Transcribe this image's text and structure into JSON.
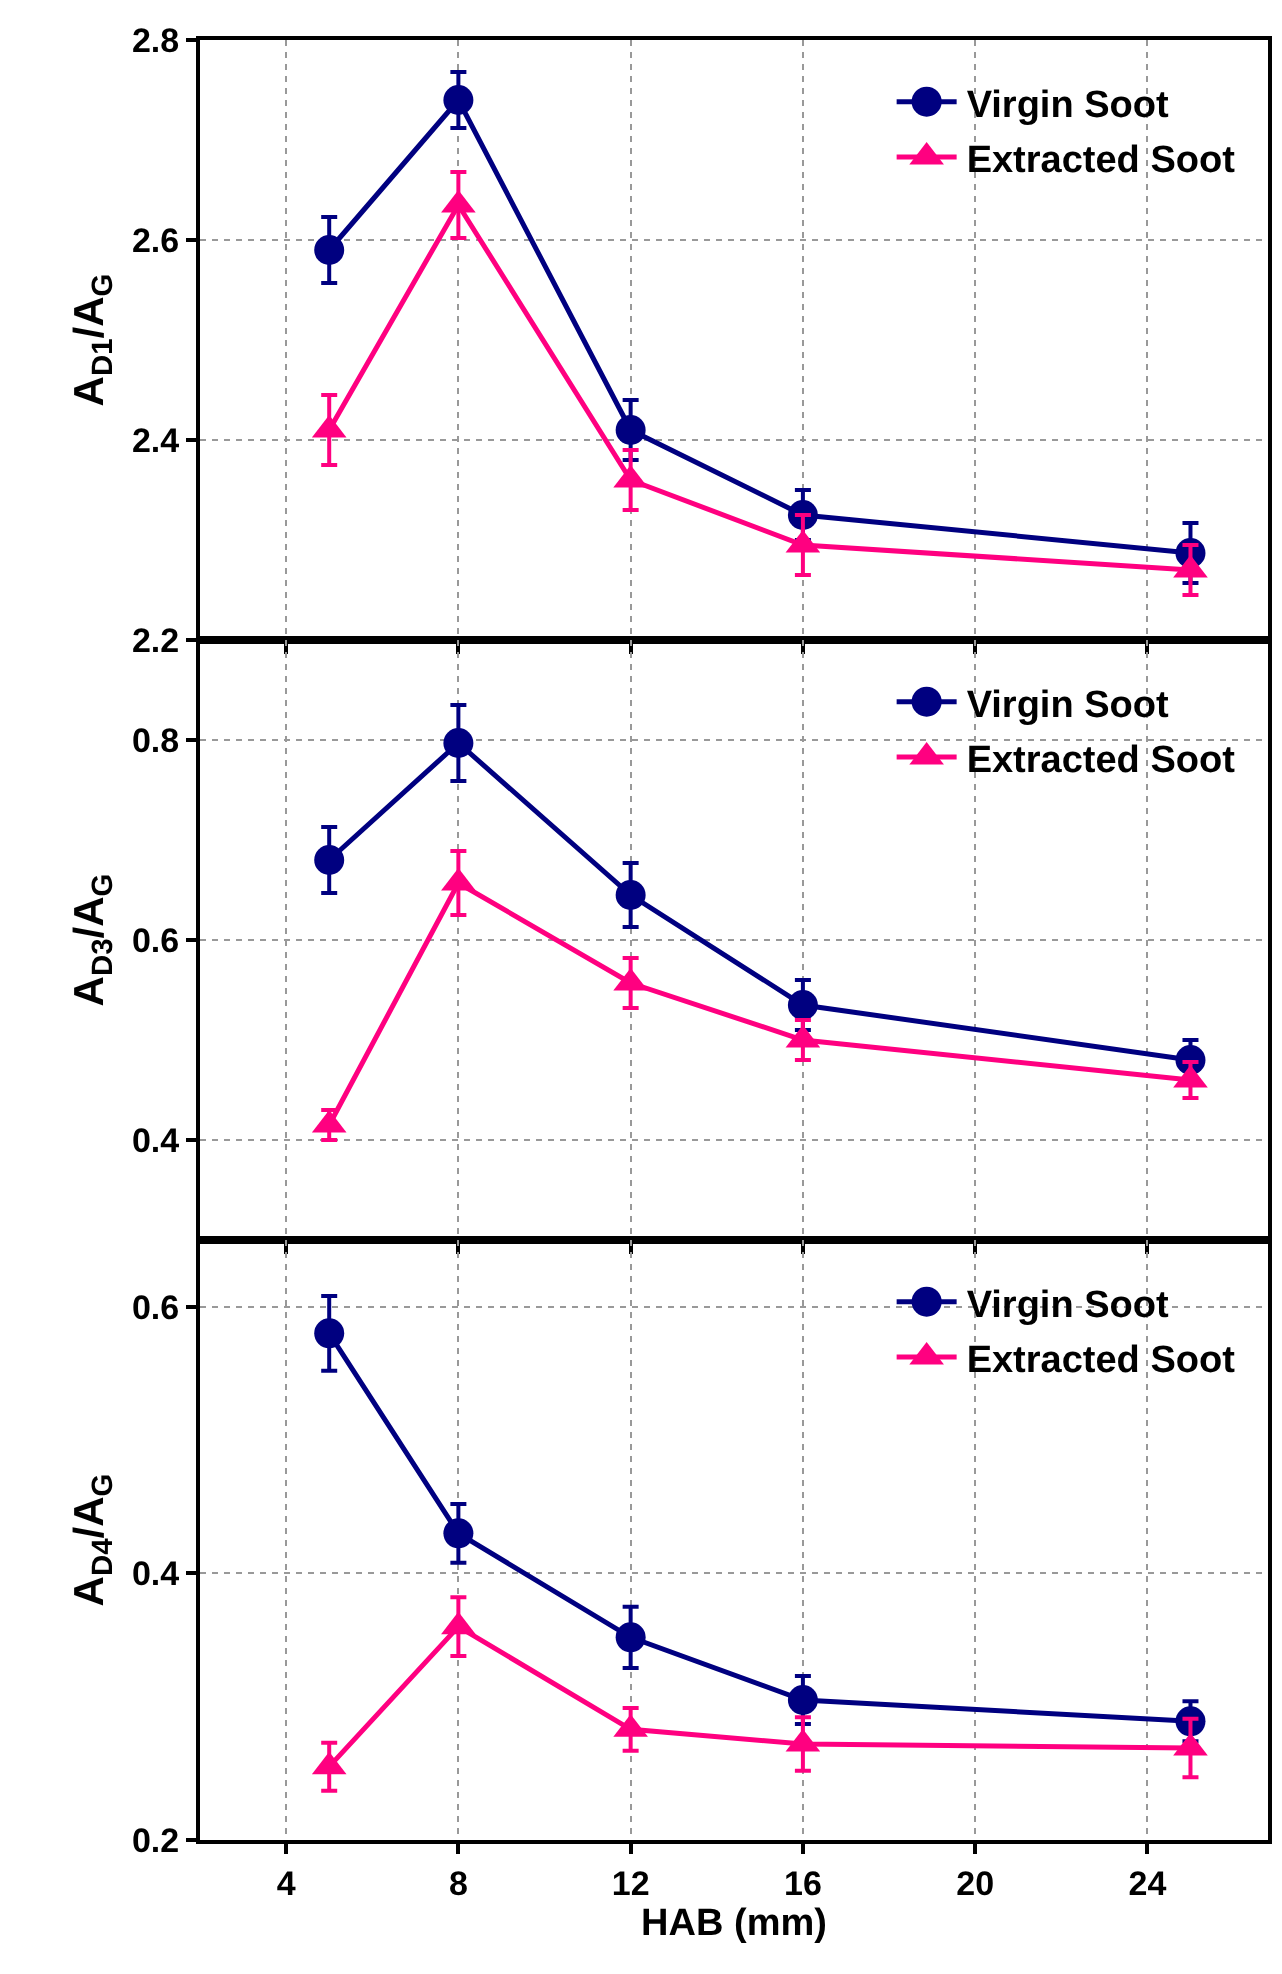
{
  "chart_data": [
    {
      "type": "line",
      "ylabel": "A$_{D1}$/A$_{G}$",
      "xlim": [
        2,
        26.8
      ],
      "xticks": [
        4,
        8,
        12,
        16,
        20,
        24
      ],
      "ylim": [
        2.2,
        2.8
      ],
      "yticks": [
        2.2,
        2.4,
        2.6,
        2.8
      ],
      "x": [
        5,
        8,
        12,
        16,
        25
      ],
      "grid": true,
      "legend": "top right",
      "tick_labels": "y",
      "series": [
        {
          "name": "Virgin Soot",
          "color": "#000080",
          "marker": "circle",
          "values": [
            2.59,
            2.74,
            2.41,
            2.325,
            2.287
          ],
          "errors": [
            0.033,
            0.028,
            0.03,
            0.025,
            0.03
          ]
        },
        {
          "name": "Extracted Soot",
          "color": "#ff0080",
          "marker": "triangle",
          "values": [
            2.41,
            2.635,
            2.36,
            2.295,
            2.27
          ],
          "errors": [
            0.035,
            0.033,
            0.03,
            0.03,
            0.025
          ]
        }
      ]
    },
    {
      "type": "line",
      "ylabel": "A$_{D3}$/A$_{G}$",
      "xlim": [
        2,
        26.8
      ],
      "xticks": [
        4,
        8,
        12,
        16,
        20,
        24
      ],
      "ylim": [
        0.3,
        0.9
      ],
      "yticks": [
        0.4,
        0.6,
        0.8
      ],
      "x": [
        5,
        8,
        12,
        16,
        25
      ],
      "grid": true,
      "legend": "top right",
      "tick_labels": "y",
      "series": [
        {
          "name": "Virgin Soot",
          "color": "#000080",
          "marker": "circle",
          "values": [
            0.68,
            0.797,
            0.645,
            0.535,
            0.48
          ],
          "errors": [
            0.033,
            0.038,
            0.032,
            0.025,
            0.02
          ]
        },
        {
          "name": "Extracted Soot",
          "color": "#ff0080",
          "marker": "triangle",
          "values": [
            0.415,
            0.657,
            0.557,
            0.5,
            0.46
          ],
          "errors": [
            0.015,
            0.032,
            0.025,
            0.02,
            0.018
          ]
        }
      ]
    },
    {
      "type": "line",
      "xlabel": "HAB (mm)",
      "ylabel": "A$_{D4}$/A$_{G}$",
      "xlim": [
        2,
        26.8
      ],
      "xticks": [
        4,
        8,
        12,
        16,
        20,
        24
      ],
      "ylim": [
        0.2,
        0.65
      ],
      "yticks": [
        0.2,
        0.4,
        0.6
      ],
      "x": [
        5,
        8,
        12,
        16,
        25
      ],
      "grid": true,
      "legend": "top right",
      "series": [
        {
          "name": "Virgin Soot",
          "color": "#000080",
          "marker": "circle",
          "values": [
            0.58,
            0.43,
            0.352,
            0.305,
            0.289
          ],
          "errors": [
            0.028,
            0.022,
            0.023,
            0.018,
            0.015
          ]
        },
        {
          "name": "Extracted Soot",
          "color": "#ff0080",
          "marker": "triangle",
          "values": [
            0.255,
            0.36,
            0.283,
            0.272,
            0.269
          ],
          "errors": [
            0.018,
            0.022,
            0.016,
            0.02,
            0.022
          ]
        }
      ]
    }
  ]
}
